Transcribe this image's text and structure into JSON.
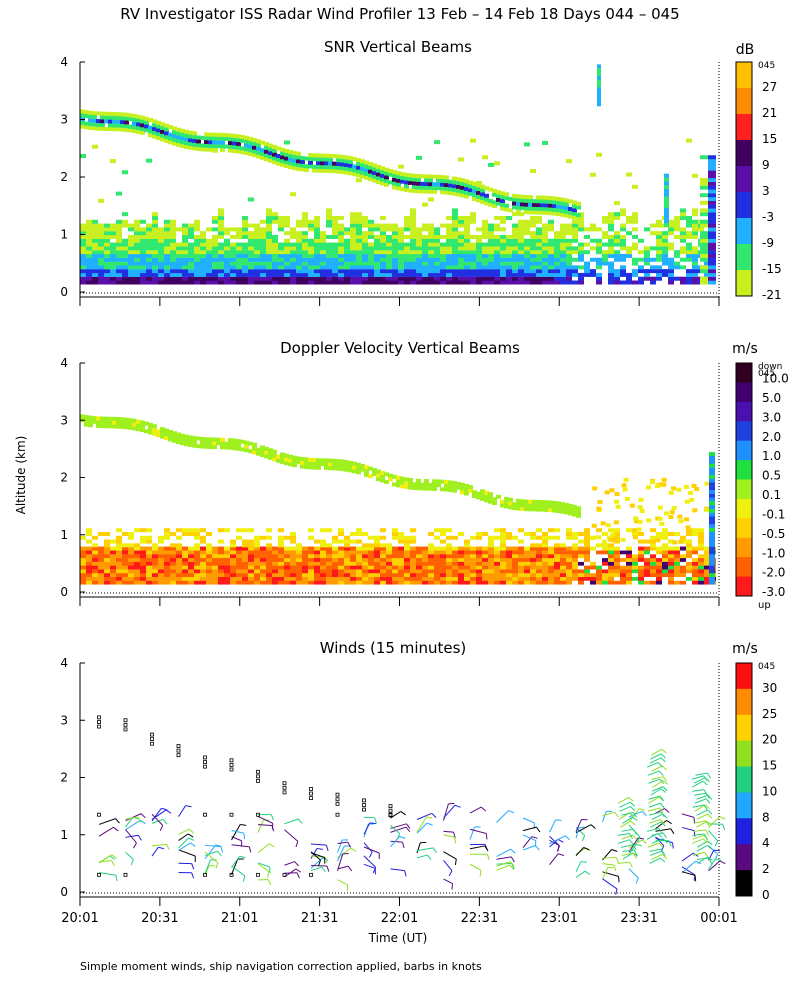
{
  "page": {
    "title": "RV Investigator ISS Radar Wind Profiler  13 Feb – 14 Feb 18 Days 044 – 045",
    "ylabel": "Altitude (km)",
    "xlabel": "Time (UT)",
    "footnote": "Simple moment winds, ship navigation correction applied, barbs in knots"
  },
  "chart_data": [
    {
      "type": "heatmap",
      "title": "SNR Vertical Beams",
      "unit": "dB",
      "colorbar_top_label": "045",
      "colorbar_labels": [
        "27",
        "21",
        "15",
        "9",
        "3",
        "-3",
        "-9",
        "-15",
        "-21"
      ],
      "colorbar_colors": [
        "#ffc000",
        "#ff8c00",
        "#ff2020",
        "#400060",
        "#5a10a8",
        "#2030e0",
        "#20b0ff",
        "#30e870",
        "#c8f020"
      ],
      "ylim": [
        0,
        4
      ],
      "yticks": [
        "0",
        "1",
        "2",
        "3",
        "4"
      ],
      "x_start": "20:01",
      "x_end": "00:01"
    },
    {
      "type": "heatmap",
      "title": "Doppler Velocity Vertical Beams",
      "unit": "m/s",
      "colorbar_top_label": "down",
      "colorbar_top_label2": "045",
      "colorbar_bottom_label": "up",
      "colorbar_labels": [
        "10.0",
        "5.0",
        "3.0",
        "2.0",
        "1.0",
        "0.5",
        "0.1",
        "-0.1",
        "-0.5",
        "-1.0",
        "-2.0",
        "-3.0"
      ],
      "colorbar_colors": [
        "#300020",
        "#400070",
        "#4a10b0",
        "#2040e0",
        "#2090ff",
        "#20e040",
        "#a0f020",
        "#f0f010",
        "#ffd000",
        "#ff9a00",
        "#ff6000",
        "#ff1a1a"
      ],
      "ylim": [
        0,
        4
      ],
      "yticks": [
        "0",
        "1",
        "2",
        "3",
        "4"
      ],
      "x_start": "20:01",
      "x_end": "00:01"
    },
    {
      "type": "scatter",
      "title": "Winds (15 minutes)",
      "unit": "m/s",
      "colorbar_top_label": "045",
      "colorbar_labels": [
        "30",
        "25",
        "20",
        "15",
        "10",
        "8",
        "4",
        "2",
        "0"
      ],
      "colorbar_colors": [
        "#ff1010",
        "#ff8c00",
        "#ffd000",
        "#90e020",
        "#20d080",
        "#20a8ff",
        "#2020e0",
        "#5a0a80",
        "#000000"
      ],
      "ylim": [
        0,
        4
      ],
      "yticks": [
        "0",
        "1",
        "2",
        "3",
        "4"
      ],
      "xticks": [
        "20:01",
        "20:31",
        "21:01",
        "21:31",
        "22:01",
        "22:31",
        "23:01",
        "23:31",
        "00:01"
      ]
    }
  ]
}
